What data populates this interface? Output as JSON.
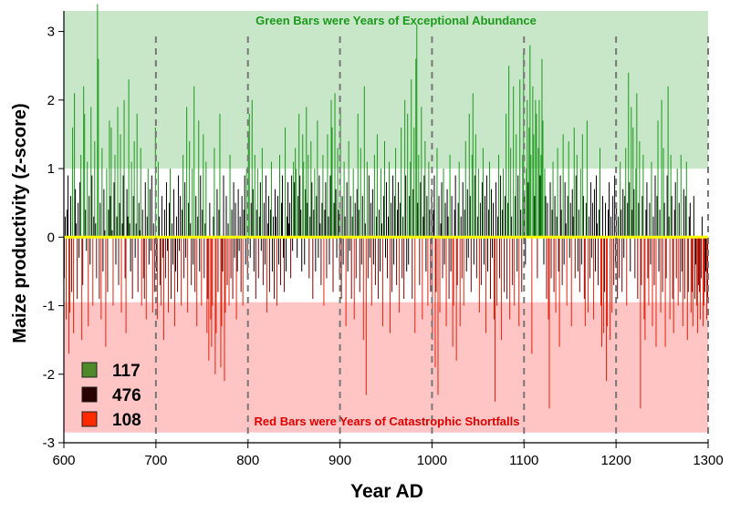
{
  "chart_data": {
    "type": "bar",
    "xlabel": "Year AD",
    "ylabel": "Maize productivity (z-score)",
    "xlim": [
      600,
      1300
    ],
    "ylim": [
      -3,
      3.3
    ],
    "x_ticks": [
      "600",
      "700",
      "800",
      "900",
      "1000",
      "1100",
      "1200",
      "1300"
    ],
    "y_ticks": [
      "-3",
      "-2",
      "-1",
      "0",
      "1",
      "2",
      "3"
    ],
    "vertical_reference_lines": [
      700,
      800,
      900,
      1000,
      1100,
      1200,
      1300
    ],
    "zero_line_color": "#ffff00",
    "bands": [
      {
        "name": "abundance",
        "from": 1,
        "to": 3.3,
        "color": "#c8e6c8",
        "label": "Green Bars were Years of Exceptional Abundance",
        "label_color": "#1a9a1a"
      },
      {
        "name": "shortfall",
        "from": -2.85,
        "to": -0.95,
        "color": "#ffc4c4",
        "label": "Red Bars were Years of Catastrophic Shortfalls",
        "label_color": "#e00000"
      }
    ],
    "legend": [
      {
        "count": "117",
        "color": "#4e8a2a"
      },
      {
        "count": "476",
        "color": "#2a0000"
      },
      {
        "count": "108",
        "color": "#ff2a00"
      }
    ],
    "colors": {
      "abundance_bar": "#1a9a1a",
      "normal_bar": "#000000",
      "shortfall_bar": "#e8200a",
      "dark_red_bar": "#7a0000"
    },
    "series": [
      {
        "start_year": 600,
        "values": [
          -0.6,
          0.3,
          -1.2,
          0.4,
          0.9,
          -1.7,
          -1.1,
          0.6,
          -0.8,
          1.6,
          -1.4,
          2.1,
          0.7,
          0.2,
          -0.9,
          0.5,
          -0.3,
          0.8,
          1.2,
          -1.5,
          -0.7,
          2.2,
          1.8,
          0.4,
          -0.2,
          1.1,
          -1.3,
          0.6,
          -0.4,
          1.9,
          0.9,
          -1.0,
          0.3,
          1.4,
          0.2,
          -0.6,
          3.4,
          2.6,
          -0.9,
          0.5,
          -1.2,
          1.3,
          -0.5,
          0.7,
          0.1,
          -1.6,
          1.0,
          -0.8,
          0.4,
          1.7,
          0.6,
          1.6,
          0.1,
          -1.0,
          0.8,
          1.2,
          -0.4,
          0.3,
          1.9,
          -0.7,
          0.5,
          1.5,
          -1.1,
          0.2,
          0.9,
          2.0,
          -0.6,
          -1.4,
          0.7,
          0.3,
          2.3,
          0.2,
          -0.5,
          1.1,
          -0.9,
          0.6,
          1.4,
          -0.3,
          0.2,
          1.8,
          -0.8,
          0.5,
          0.1,
          1.3,
          -1.0,
          0.4,
          -0.6,
          -0.9,
          0.8,
          -1.2,
          0.3,
          1.0,
          -0.4,
          0.7,
          -0.2,
          0.9,
          -1.1,
          0.2,
          -0.8,
          1.6,
          -0.5,
          -1.2,
          1.1,
          0.3,
          -0.7,
          -1.0,
          0.6,
          -0.3,
          -1.5,
          0.4,
          -0.6,
          0.8,
          -0.2,
          -1.1,
          0.5,
          1.0,
          -0.9,
          0.2,
          -0.4,
          0.7,
          -1.3,
          -0.5,
          0.3,
          -0.8,
          0.9,
          -0.2,
          0.6,
          -1.0,
          0.4,
          1.2,
          -0.6,
          0.8,
          -0.3,
          1.9,
          -1.1,
          0.5,
          1.4,
          0.2,
          -0.7,
          1.0,
          -0.4,
          2.2,
          -0.8,
          0.6,
          -1.3,
          0.3,
          1.7,
          -0.5,
          0.9,
          -1.0,
          0.4,
          1.5,
          -0.6,
          0.2,
          1.1,
          -1.4,
          -0.9,
          -1.8,
          0.5,
          -1.2,
          -1.6,
          -1.0,
          0.3,
          1.3,
          -2.0,
          -1.4,
          0.7,
          -0.8,
          0.4,
          1.8,
          -1.9,
          -1.3,
          -0.5,
          0.9,
          -2.1,
          -1.1,
          0.6,
          -0.7,
          0.2,
          -1.0,
          1.2,
          -0.6,
          0.4,
          -0.9,
          0.8,
          -0.3,
          0.5,
          -1.2,
          -0.5,
          0.7,
          -0.2,
          0.3,
          -0.8,
          0.6,
          -1.0,
          0.4,
          0.9,
          -0.4,
          1.0,
          -0.6,
          1.5,
          1.8,
          -0.3,
          0.5,
          2.0,
          0.7,
          -0.5,
          1.2,
          -0.9,
          0.4,
          1.0,
          -0.6,
          0.3,
          0.8,
          -0.2,
          1.3,
          -0.7,
          0.5,
          -0.4,
          0.9,
          -1.1,
          0.2,
          0.6,
          -0.8,
          0.4,
          1.1,
          -0.5,
          0.3,
          -0.9,
          0.7,
          0.3,
          -1.0,
          0.6,
          -0.4,
          1.2,
          -0.7,
          0.5,
          0.9,
          -0.3,
          -0.8,
          1.6,
          -0.5,
          0.3,
          0.8,
          0.2,
          0.5,
          -0.6,
          0.9,
          -0.2,
          1.1,
          0.8,
          1.3,
          1.0,
          -0.3,
          0.6,
          1.8,
          0.9,
          0.4,
          -0.5,
          1.5,
          1.1,
          -0.4,
          0.7,
          1.9,
          0.5,
          1.2,
          -0.6,
          0.3,
          1.4,
          0.8,
          -0.9,
          0.4,
          1.0,
          -0.5,
          0.6,
          1.7,
          -0.3,
          0.9,
          0.2,
          -0.7,
          0.5,
          1.2,
          -1.0,
          0.4,
          0.8,
          -0.6,
          1.5,
          0.3,
          -0.4,
          0.9,
          2.0,
          1.6,
          -0.8,
          0.5,
          2.1,
          0.7,
          -0.3,
          1.3,
          0.4,
          -0.6,
          1.9,
          -0.9,
          0.6,
          -0.4,
          1.1,
          0.3,
          -1.3,
          0.8,
          -0.5,
          1.4,
          -0.2,
          0.6,
          -0.9,
          0.3,
          1.0,
          -1.2,
          0.5,
          -0.6,
          0.7,
          1.8,
          0.4,
          -0.8,
          1.3,
          -0.4,
          0.6,
          -1.5,
          2.2,
          0.2,
          -2.3,
          1.1,
          -0.6,
          0.9,
          -0.3,
          0.5,
          -1.0,
          0.7,
          -0.4,
          1.2,
          -0.7,
          0.3,
          1.5,
          -0.9,
          0.4,
          -0.5,
          1.0,
          0.2,
          -1.3,
          0.6,
          1.4,
          -0.3,
          0.8,
          -0.6,
          0.3,
          1.1,
          -1.4,
          0.5,
          -0.8,
          0.9,
          -0.4,
          0.6,
          1.3,
          -0.7,
          0.4,
          0.8,
          -1.1,
          0.5,
          1.6,
          -0.6,
          0.3,
          -0.9,
          2.0,
          0.9,
          -0.5,
          1.8,
          -0.4,
          0.6,
          1.1,
          2.3,
          -0.9,
          0.7,
          1.6,
          -1.4,
          2.6,
          3.1,
          0.5,
          1.2,
          -0.7,
          0.8,
          1.9,
          -1.2,
          0.3,
          0.9,
          1.4,
          -0.5,
          0.6,
          -1.0,
          1.1,
          0.4,
          -0.8,
          0.7,
          -1.5,
          0.4,
          0.9,
          -1.9,
          -0.8,
          1.3,
          -2.3,
          0.6,
          -1.1,
          0.2,
          0.8,
          -0.6,
          1.0,
          -0.4,
          0.5,
          -1.3,
          0.7,
          0.3,
          -0.9,
          1.2,
          -0.5,
          0.6,
          -1.6,
          -1.0,
          0.4,
          0.9,
          -1.8,
          -0.7,
          0.5,
          1.1,
          -1.3,
          0.3,
          -0.6,
          0.8,
          -1.0,
          0.4,
          1.4,
          -0.5,
          0.7,
          -0.3,
          1.8,
          0.6,
          -0.8,
          1.2,
          2.1,
          -0.4,
          0.9,
          1.5,
          -0.6,
          0.3,
          1.0,
          -1.1,
          0.5,
          -0.7,
          0.8,
          1.3,
          -0.4,
          0.6,
          -1.4,
          0.9,
          -0.5,
          0.4,
          1.1,
          -0.9,
          0.7,
          -0.3,
          0.5,
          -1.2,
          -2.4,
          0.8,
          -1.0,
          0.3,
          1.2,
          -0.6,
          0.9,
          -1.5,
          0.4,
          1.0,
          -0.8,
          0.6,
          1.8,
          -0.9,
          0.5,
          2.5,
          -1.2,
          1.3,
          0.3,
          -0.7,
          2.2,
          -1.0,
          0.6,
          1.5,
          -0.5,
          0.9,
          -1.3,
          2.3,
          0.4,
          -0.8,
          1.2,
          2.7,
          0.6,
          -0.4,
          1.0,
          2.0,
          0.8,
          1.6,
          2.8,
          1.2,
          -1.7,
          2.2,
          1.5,
          0.6,
          2.0,
          1.8,
          -0.6,
          1.3,
          2.0,
          0.9,
          1.2,
          2.6,
          1.7,
          -0.4,
          1.0,
          0.6,
          -0.9,
          0.5,
          -1.2,
          -2.5,
          0.8,
          -0.6,
          0.4,
          1.1,
          -0.8,
          0.6,
          -1.1,
          0.3,
          1.3,
          -0.5,
          -1.6,
          0.9,
          0.4,
          -0.7,
          1.5,
          -0.4,
          0.8,
          0.2,
          -1.0,
          0.6,
          1.4,
          -0.3,
          0.5,
          -1.3,
          0.7,
          0.3,
          1.6,
          -0.6,
          0.9,
          1.2,
          -0.5,
          0.4,
          -0.8,
          1.0,
          -0.4,
          1.5,
          0.6,
          -0.9,
          -1.3,
          0.5,
          1.7,
          -1.1,
          0.3,
          -0.6,
          0.8,
          -0.3,
          0.5,
          -1.2,
          0.7,
          -0.5,
          0.9,
          0.2,
          -0.7,
          0.4,
          1.3,
          -1.0,
          -1.6,
          0.6,
          -1.4,
          -0.8,
          0.5,
          -2.1,
          -1.3,
          0.4,
          0.8,
          -1.5,
          0.3,
          -1.1,
          0.6,
          -0.7,
          0.9,
          -0.4,
          0.5,
          -0.9,
          0.3,
          -0.6,
          1.1,
          0.4,
          -0.8,
          0.7,
          -0.3,
          0.6,
          1.3,
          -1.0,
          0.5,
          2.4,
          0.8,
          -0.5,
          1.9,
          0.4,
          1.6,
          0.7,
          -0.6,
          1.0,
          2.1,
          -0.9,
          0.5,
          1.4,
          -2.5,
          -0.7,
          0.6,
          1.2,
          -1.2,
          -1.5,
          0.4,
          0.8,
          -0.6,
          -1.0,
          0.5,
          -0.4,
          1.1,
          -1.3,
          0.3,
          -0.7,
          0.9,
          -1.6,
          0.6,
          1.7,
          -0.5,
          0.4,
          -1.1,
          2.0,
          -0.8,
          1.3,
          0.5,
          -1.6,
          -0.6,
          0.9,
          2.2,
          0.3,
          -1.2,
          1.2,
          0.6,
          -0.9,
          -1.4,
          0.4,
          0.8,
          -0.6,
          1.0,
          -1.0,
          0.5,
          -0.8,
          1.2,
          -0.5,
          -1.3,
          0.7,
          -0.9,
          0.6,
          1.1,
          -1.5,
          -0.8,
          0.3,
          0.5,
          -1.1,
          -0.8,
          -1.3,
          0.6,
          -0.9,
          -0.4,
          -1.0,
          -1.4,
          -0.7,
          -0.8,
          -1.2,
          -0.6,
          0.3,
          -1.3,
          -1.0,
          -0.8,
          -0.5,
          -1.2,
          -0.9
        ]
      }
    ]
  }
}
